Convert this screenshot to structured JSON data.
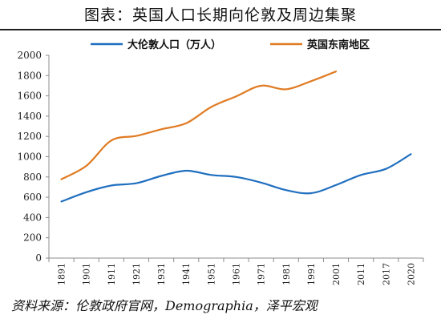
{
  "title": "图表：英国人口长期向伦敦及周边集聚",
  "source": "资料来源：伦敦政府官网，Demographia，泽平宏观",
  "chart_data": {
    "type": "line",
    "categories": [
      "1891",
      "1901",
      "1911",
      "1921",
      "1931",
      "1941",
      "1951",
      "1961",
      "1971",
      "1981",
      "1991",
      "2001",
      "2011",
      "2017",
      "2020"
    ],
    "series": [
      {
        "name": "大伦敦人口（万人）",
        "color": "#1f6fbf",
        "values": [
          558,
          650,
          716,
          738,
          810,
          862,
          820,
          800,
          745,
          670,
          640,
          720,
          820,
          880,
          1025
        ]
      },
      {
        "name": "英国东南地区",
        "color": "#e07b23",
        "values": [
          778,
          910,
          1160,
          1205,
          1270,
          1330,
          1490,
          1595,
          1700,
          1665,
          1745,
          1840,
          null,
          null,
          null
        ]
      }
    ],
    "yticks": [
      "0",
      "200",
      "400",
      "600",
      "800",
      "1000",
      "1200",
      "1400",
      "1600",
      "1800",
      "2000"
    ],
    "ylim": [
      0,
      2000
    ],
    "legend_position": "top",
    "grid": false
  }
}
